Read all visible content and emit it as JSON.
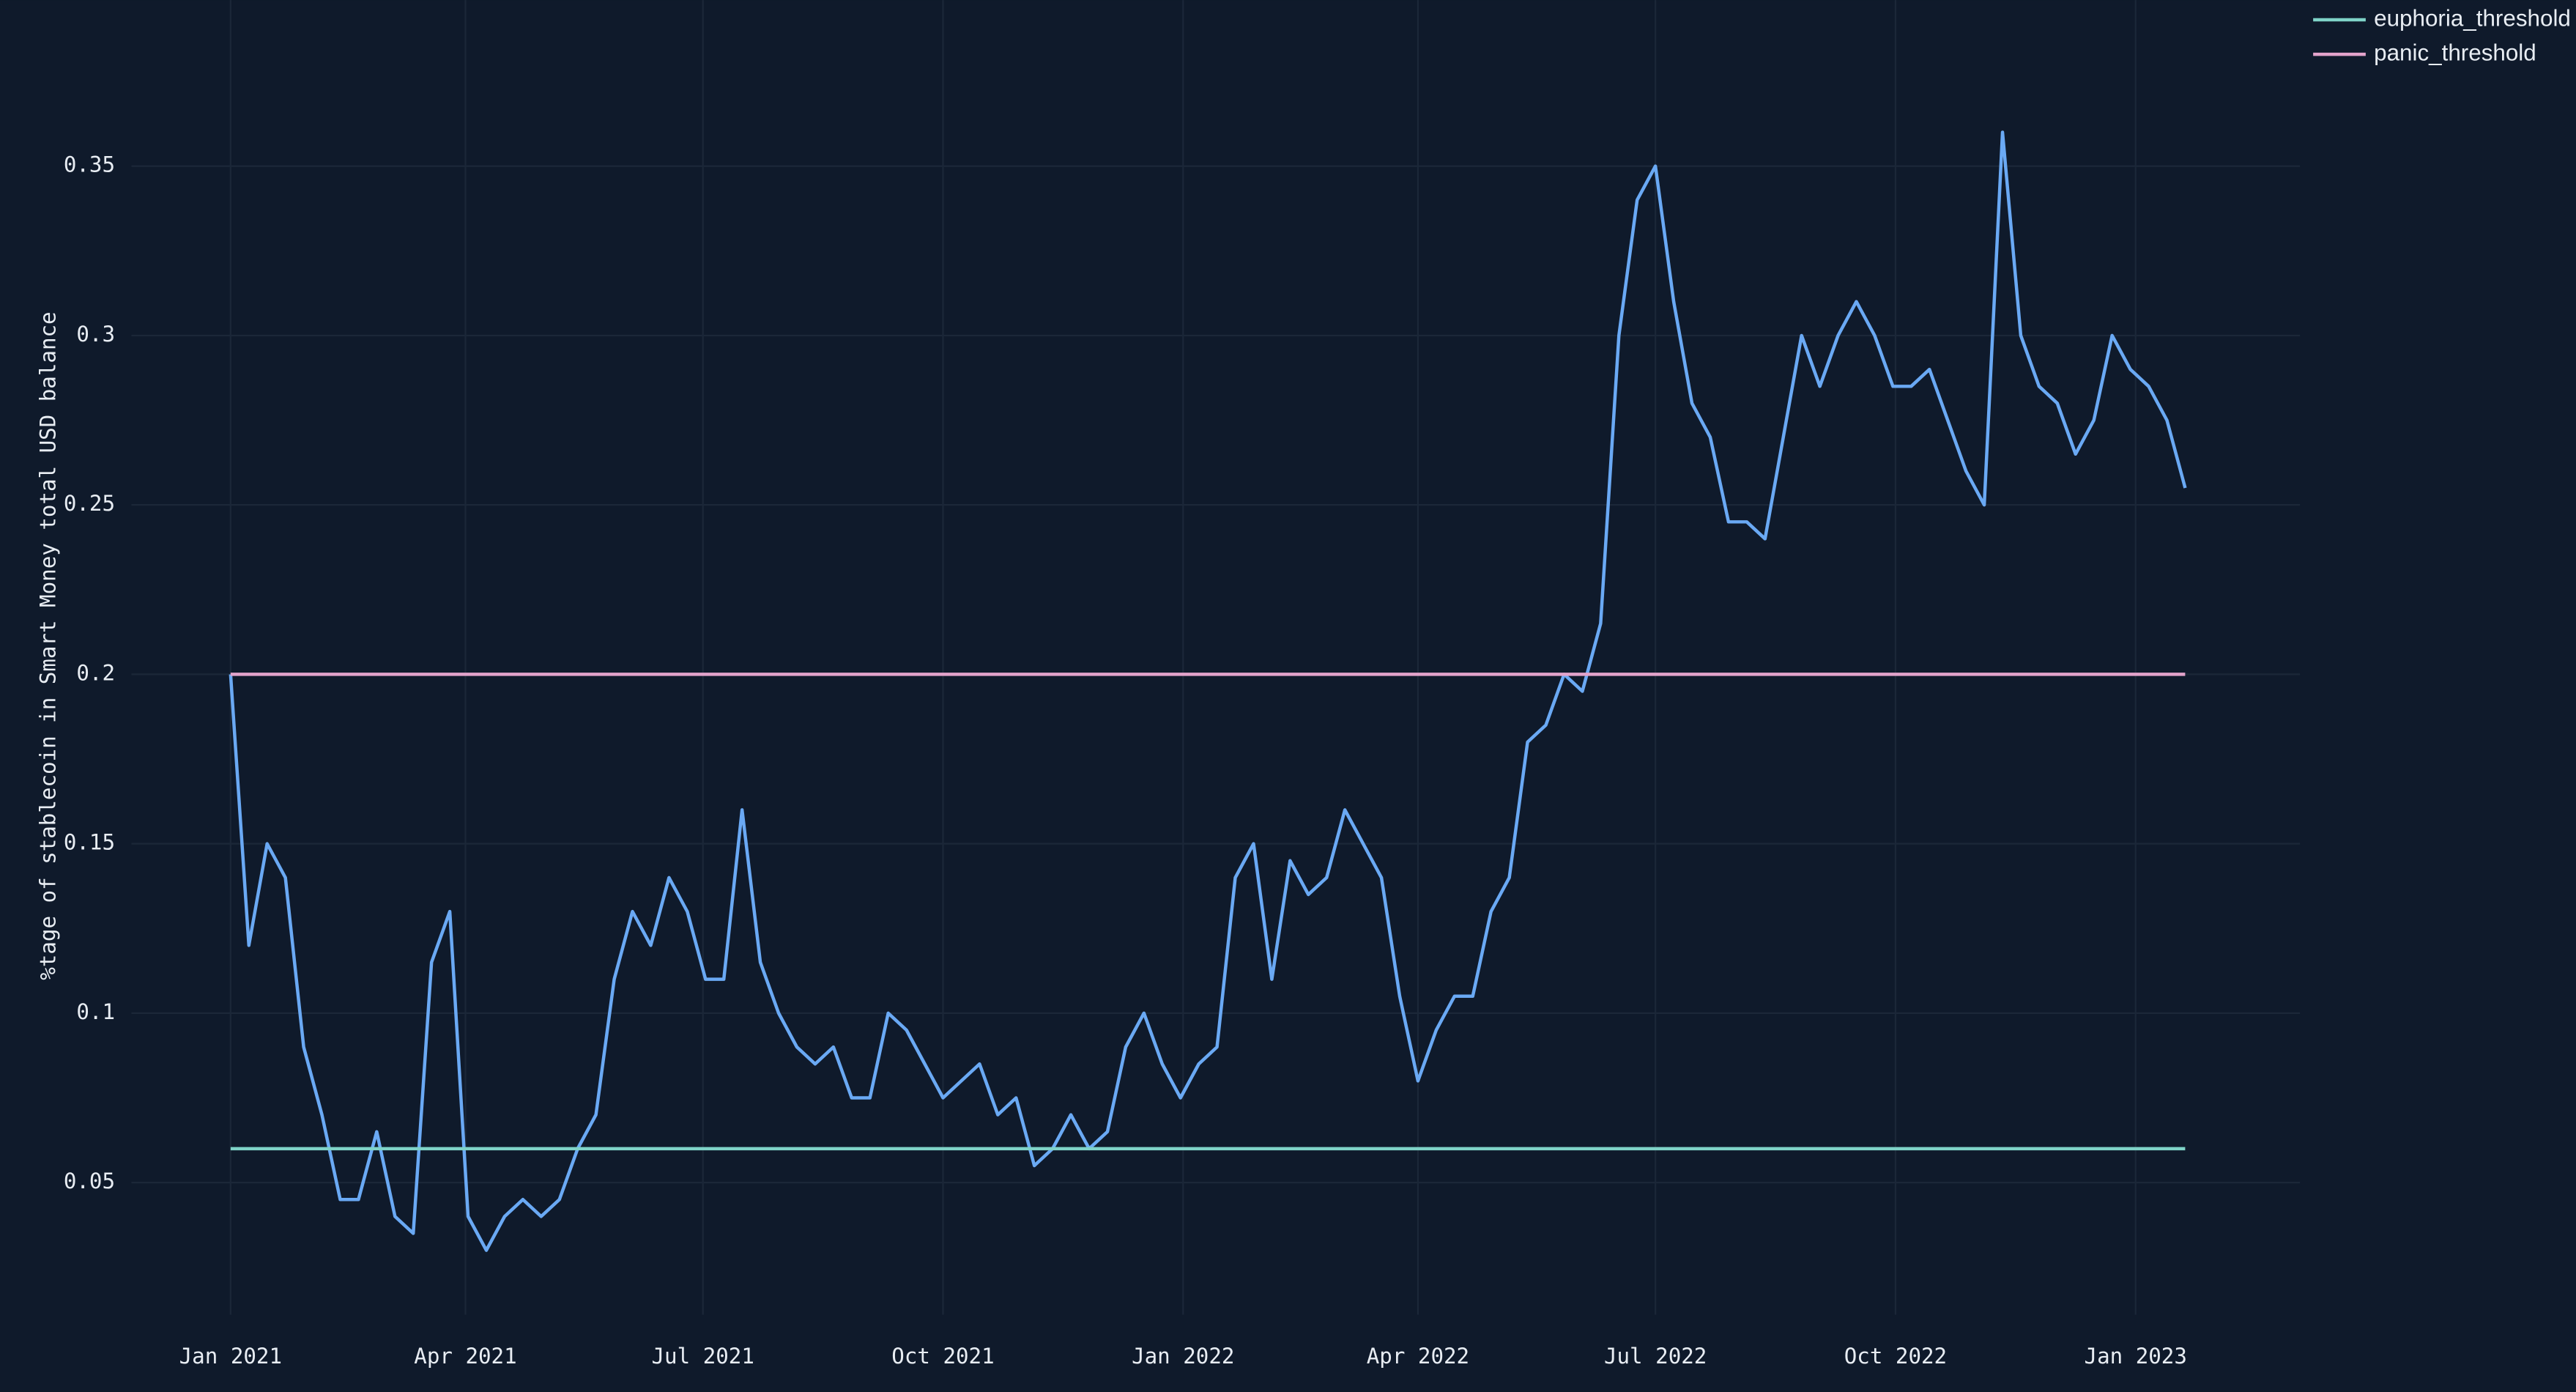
{
  "chart_data": {
    "type": "line",
    "y_label": "%tage of stablecoin in Smart Money total USD balance",
    "xlim": [
      "2020-11-24",
      "2023-03-05"
    ],
    "xticks": [
      {
        "value": "2021-01-01",
        "label": "Jan 2021"
      },
      {
        "value": "2021-04-01",
        "label": "Apr 2021"
      },
      {
        "value": "2021-07-01",
        "label": "Jul 2021"
      },
      {
        "value": "2021-10-01",
        "label": "Oct 2021"
      },
      {
        "value": "2022-01-01",
        "label": "Jan 2022"
      },
      {
        "value": "2022-04-01",
        "label": "Apr 2022"
      },
      {
        "value": "2022-07-01",
        "label": "Jul 2022"
      },
      {
        "value": "2022-10-01",
        "label": "Oct 2022"
      },
      {
        "value": "2023-01-01",
        "label": "Jan 2023"
      }
    ],
    "ylim": [
      0.011,
      0.399
    ],
    "yticks": [
      0.05,
      0.1,
      0.15,
      0.2,
      0.25,
      0.3,
      0.35
    ],
    "grid": true,
    "legend": "top-right",
    "series": [
      {
        "color": "#6aa9f4",
        "x": [
          "2021-01-01",
          "2021-01-08",
          "2021-01-15",
          "2021-01-22",
          "2021-01-29",
          "2021-02-05",
          "2021-02-12",
          "2021-02-19",
          "2021-02-26",
          "2021-03-05",
          "2021-03-12",
          "2021-03-19",
          "2021-03-26",
          "2021-04-02",
          "2021-04-09",
          "2021-04-16",
          "2021-04-23",
          "2021-04-30",
          "2021-05-07",
          "2021-05-14",
          "2021-05-21",
          "2021-05-28",
          "2021-06-04",
          "2021-06-11",
          "2021-06-18",
          "2021-06-25",
          "2021-07-02",
          "2021-07-09",
          "2021-07-16",
          "2021-07-23",
          "2021-07-30",
          "2021-08-06",
          "2021-08-13",
          "2021-08-20",
          "2021-08-27",
          "2021-09-03",
          "2021-09-10",
          "2021-09-17",
          "2021-09-24",
          "2021-10-01",
          "2021-10-08",
          "2021-10-15",
          "2021-10-22",
          "2021-10-29",
          "2021-11-05",
          "2021-11-12",
          "2021-11-19",
          "2021-11-26",
          "2021-12-03",
          "2021-12-10",
          "2021-12-17",
          "2021-12-24",
          "2021-12-31",
          "2022-01-07",
          "2022-01-14",
          "2022-01-21",
          "2022-01-28",
          "2022-02-04",
          "2022-02-11",
          "2022-02-18",
          "2022-02-25",
          "2022-03-04",
          "2022-03-11",
          "2022-03-18",
          "2022-03-25",
          "2022-04-01",
          "2022-04-08",
          "2022-04-15",
          "2022-04-22",
          "2022-04-29",
          "2022-05-06",
          "2022-05-13",
          "2022-05-20",
          "2022-05-27",
          "2022-06-03",
          "2022-06-10",
          "2022-06-17",
          "2022-06-24",
          "2022-07-01",
          "2022-07-08",
          "2022-07-15",
          "2022-07-22",
          "2022-07-29",
          "2022-08-05",
          "2022-08-12",
          "2022-08-19",
          "2022-08-26",
          "2022-09-02",
          "2022-09-09",
          "2022-09-16",
          "2022-09-23",
          "2022-09-30",
          "2022-10-07",
          "2022-10-14",
          "2022-10-21",
          "2022-10-28",
          "2022-11-04",
          "2022-11-11",
          "2022-11-18",
          "2022-11-25",
          "2022-12-02",
          "2022-12-09",
          "2022-12-16",
          "2022-12-23",
          "2022-12-30",
          "2023-01-06",
          "2023-01-13",
          "2023-01-20"
        ],
        "values": [
          0.2,
          0.12,
          0.15,
          0.14,
          0.09,
          0.07,
          0.045,
          0.045,
          0.065,
          0.04,
          0.035,
          0.115,
          0.13,
          0.04,
          0.03,
          0.04,
          0.045,
          0.04,
          0.045,
          0.06,
          0.07,
          0.11,
          0.13,
          0.12,
          0.14,
          0.13,
          0.11,
          0.11,
          0.16,
          0.115,
          0.1,
          0.09,
          0.085,
          0.09,
          0.075,
          0.075,
          0.1,
          0.095,
          0.085,
          0.075,
          0.08,
          0.085,
          0.07,
          0.075,
          0.055,
          0.06,
          0.07,
          0.06,
          0.065,
          0.09,
          0.1,
          0.085,
          0.075,
          0.085,
          0.09,
          0.14,
          0.15,
          0.11,
          0.145,
          0.135,
          0.14,
          0.16,
          0.15,
          0.14,
          0.105,
          0.08,
          0.095,
          0.105,
          0.105,
          0.13,
          0.14,
          0.18,
          0.185,
          0.2,
          0.195,
          0.215,
          0.3,
          0.34,
          0.35,
          0.31,
          0.28,
          0.27,
          0.245,
          0.245,
          0.24,
          0.27,
          0.3,
          0.285,
          0.3,
          0.31,
          0.3,
          0.285,
          0.285,
          0.29,
          0.275,
          0.26,
          0.25,
          0.36,
          0.3,
          0.285,
          0.28,
          0.265,
          0.275,
          0.3,
          0.29,
          0.285,
          0.275,
          0.255
        ]
      },
      {
        "name": "euphoria_threshold",
        "color": "#7fd3c8",
        "x": [
          "2021-01-01",
          "2023-01-20"
        ],
        "values": [
          0.06,
          0.06
        ]
      },
      {
        "name": "panic_threshold",
        "color": "#e3a3cb",
        "x": [
          "2021-01-01",
          "2023-01-20"
        ],
        "values": [
          0.2,
          0.2
        ]
      }
    ]
  }
}
